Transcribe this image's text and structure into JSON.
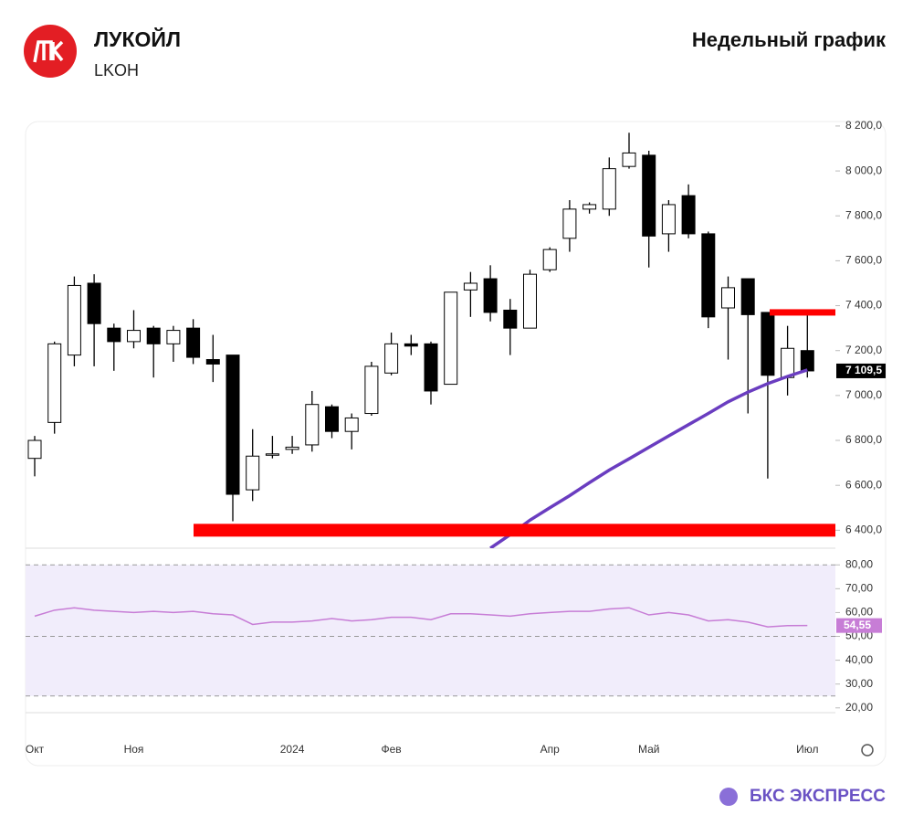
{
  "header": {
    "title": "ЛУКОЙЛ",
    "ticker": "LKOH",
    "period": "Недельный график"
  },
  "footer": {
    "brand": "БКС ЭКСПРЕСС"
  },
  "chart_data": [
    {
      "type": "candlestick",
      "categories": [
        "Окт",
        null,
        null,
        null,
        null,
        "Ноя",
        null,
        null,
        null,
        null,
        null,
        null,
        null,
        "2024",
        null,
        null,
        null,
        null,
        "Фев",
        null,
        null,
        null,
        null,
        null,
        null,
        null,
        "Апр",
        null,
        null,
        null,
        null,
        "Май",
        null,
        null,
        null,
        null,
        null,
        null,
        null,
        "Июл"
      ],
      "open": [
        6720,
        6880,
        7180,
        7500,
        7300,
        7240,
        7300,
        7230,
        7300,
        7160,
        7180,
        6580,
        6740,
        6760,
        6780,
        6950,
        6840,
        6920,
        7100,
        7230,
        7230,
        7050,
        7470,
        7520,
        7380,
        7300,
        7560,
        7700,
        7830,
        7830,
        8020,
        8070,
        7720,
        7890,
        7720,
        7390,
        7520,
        7370,
        7080,
        7200
      ],
      "high": [
        6820,
        7240,
        7530,
        7540,
        7320,
        7380,
        7310,
        7310,
        7340,
        7270,
        7180,
        6850,
        6820,
        6820,
        7020,
        6960,
        6920,
        7150,
        7280,
        7270,
        7240,
        7460,
        7550,
        7580,
        7430,
        7560,
        7660,
        7870,
        7860,
        8060,
        8170,
        8090,
        7870,
        7940,
        7730,
        7530,
        7520,
        7370,
        7310,
        7360
      ],
      "low": [
        6640,
        6830,
        7130,
        7130,
        7110,
        7210,
        7080,
        7150,
        7140,
        7060,
        6440,
        6530,
        6720,
        6740,
        6750,
        6810,
        6760,
        6910,
        7090,
        7180,
        6960,
        7050,
        7350,
        7330,
        7180,
        7300,
        7550,
        7640,
        7810,
        7800,
        8010,
        7570,
        7640,
        7700,
        7300,
        7160,
        6920,
        6630,
        7000,
        7080
      ],
      "close": [
        6800,
        7230,
        7490,
        7320,
        7240,
        7290,
        7230,
        7290,
        7170,
        7140,
        6560,
        6730,
        6740,
        6770,
        6960,
        6840,
        6900,
        7130,
        7230,
        7220,
        7020,
        7460,
        7500,
        7370,
        7300,
        7540,
        7650,
        7830,
        7850,
        8010,
        8080,
        7710,
        7850,
        7720,
        7350,
        7480,
        7360,
        7090,
        7210,
        7109.5
      ],
      "last_label": "7 109,5",
      "up_color": "#ffffff",
      "down_color": "#000000",
      "ma": {
        "color": "#6a3dc0",
        "values": [
          null,
          null,
          null,
          null,
          null,
          null,
          null,
          null,
          null,
          null,
          null,
          null,
          null,
          null,
          null,
          null,
          null,
          null,
          null,
          null,
          null,
          null,
          null,
          6320,
          6380,
          6445,
          6500,
          6554,
          6612,
          6668,
          6718,
          6769,
          6820,
          6870,
          6920,
          6972,
          7015,
          7053,
          7085,
          7114
        ]
      },
      "levels": [
        {
          "value": 6400,
          "color": "#ff0000"
        },
        {
          "value": 7370,
          "color": "#ff0000"
        }
      ],
      "ylim": [
        6320,
        8216
      ],
      "yticks": [
        {
          "value": 6400,
          "label": "6 400,0"
        },
        {
          "value": 6600,
          "label": "6 600,0"
        },
        {
          "value": 6800,
          "label": "6 800,0"
        },
        {
          "value": 7000,
          "label": "7 000,0"
        },
        {
          "value": 7200,
          "label": "7 200,0"
        },
        {
          "value": 7400,
          "label": "7 400,0"
        },
        {
          "value": 7600,
          "label": "7 600,0"
        },
        {
          "value": 7800,
          "label": "7 800,0"
        },
        {
          "value": 8000,
          "label": "8 000,0"
        },
        {
          "value": 8200,
          "label": "8 200,0"
        }
      ]
    },
    {
      "type": "line",
      "values": [
        58.5,
        61,
        62,
        61,
        60.5,
        60,
        60.5,
        60,
        60.5,
        59.5,
        59,
        55,
        56,
        56,
        56.5,
        57.5,
        56.5,
        57,
        58,
        58,
        57,
        59.5,
        59.5,
        59,
        58.5,
        59.5,
        60,
        60.5,
        60.5,
        61.5,
        62,
        59,
        60,
        59,
        56.5,
        57,
        56,
        54,
        54.5,
        54.55
      ],
      "last_label": "54,55",
      "color": "#c77dd6",
      "band_color": "#f1edfb",
      "levels": [
        80,
        50,
        25
      ],
      "ylim": [
        18,
        87
      ],
      "yticks": [
        {
          "value": 20,
          "label": "20,00"
        },
        {
          "value": 30,
          "label": "30,00"
        },
        {
          "value": 40,
          "label": "40,00"
        },
        {
          "value": 50,
          "label": "50,00"
        },
        {
          "value": 60,
          "label": "60,00"
        },
        {
          "value": 70,
          "label": "70,00"
        },
        {
          "value": 80,
          "label": "80,00"
        }
      ]
    }
  ]
}
